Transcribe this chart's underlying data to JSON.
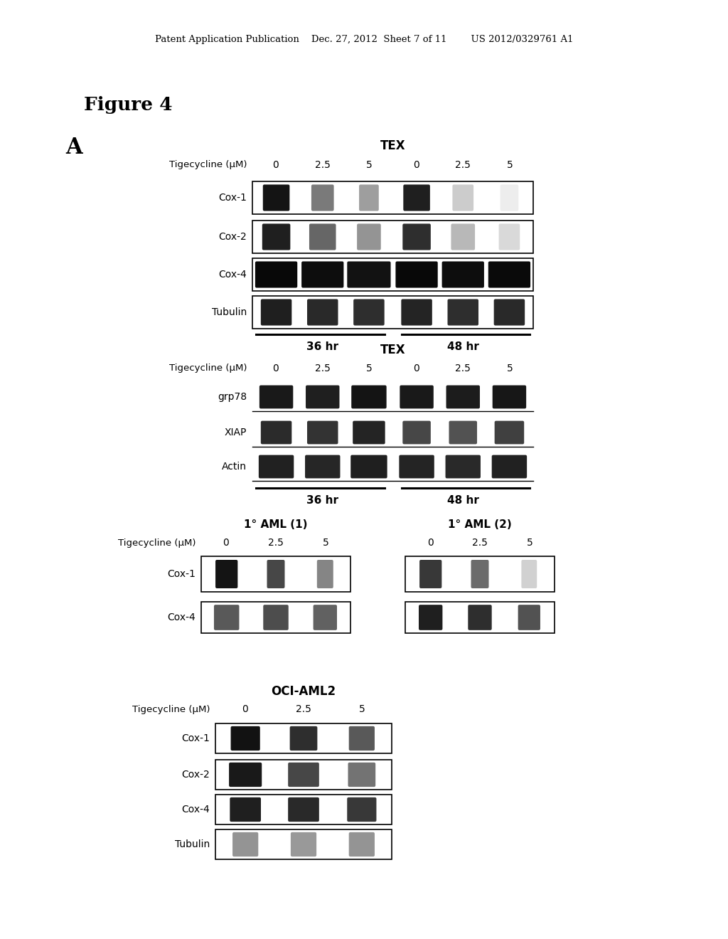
{
  "bg_color": "#ffffff",
  "header_text": "Patent Application Publication    Dec. 27, 2012  Sheet 7 of 11        US 2012/0329761 A1",
  "figure_label": "Figure 4",
  "panel_label": "A",
  "panel1": {
    "title": "TEX",
    "tigecycline_label": "Tigecycline (μM)",
    "concentrations": [
      "0",
      "2.5",
      "5",
      "0",
      "2.5",
      "5"
    ],
    "bands": [
      "Cox-1",
      "Cox-2",
      "Cox-4",
      "Tubulin"
    ],
    "time_labels": [
      "36 hr",
      "48 hr"
    ]
  },
  "panel2": {
    "title": "TEX",
    "tigecycline_label": "Tigecycline (μM)",
    "concentrations": [
      "0",
      "2.5",
      "5",
      "0",
      "2.5",
      "5"
    ],
    "bands": [
      "grp78",
      "XIAP",
      "Actin"
    ],
    "time_labels": [
      "36 hr",
      "48 hr"
    ]
  },
  "panel3": {
    "title1": "1° AML (1)",
    "title2": "1° AML (2)",
    "tigecycline_label": "Tigecycline (μM)",
    "concentrations": [
      "0",
      "2.5",
      "5"
    ],
    "bands": [
      "Cox-1",
      "Cox-4"
    ]
  },
  "panel4": {
    "title": "OCI-AML2",
    "tigecycline_label": "Tigecycline (μM)",
    "concentrations": [
      "0",
      "2.5",
      "5"
    ],
    "bands": [
      "Cox-1",
      "Cox-2",
      "Cox-4",
      "Tubulin"
    ]
  }
}
